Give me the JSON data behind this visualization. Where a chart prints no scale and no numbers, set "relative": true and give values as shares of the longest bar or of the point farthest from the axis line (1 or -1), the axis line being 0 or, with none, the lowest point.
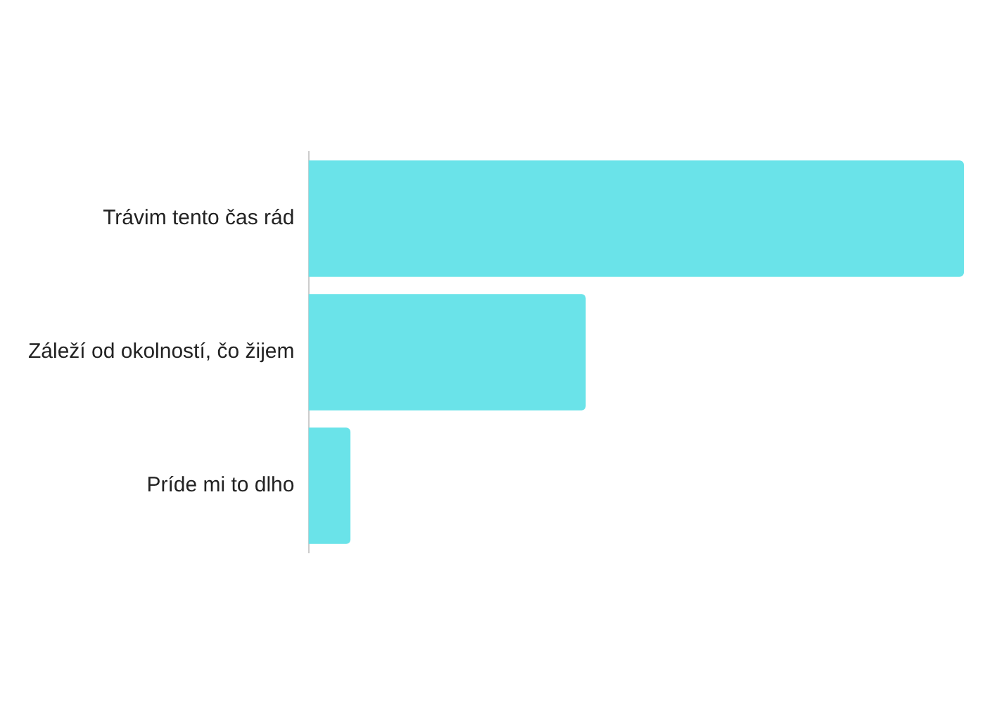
{
  "chart_data": {
    "type": "bar",
    "orientation": "horizontal",
    "relative": true,
    "categories": [
      "Trávim tento čas rád",
      "Záleží od okolností, čo žijem",
      "Príde mi to dlho"
    ],
    "values": [
      1,
      0.423,
      0.064
    ],
    "color": "#6ae3e9"
  }
}
